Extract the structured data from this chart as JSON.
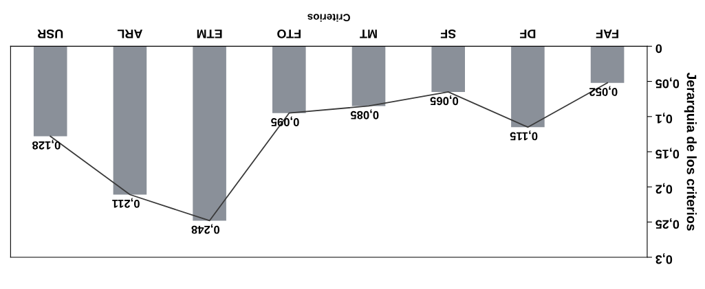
{
  "chart_data": {
    "type": "bar",
    "xlabel": "Criterios",
    "ylabel": "Jerarquia de los criterios",
    "categories": [
      "USR",
      "ARL",
      "ETM",
      "FTO",
      "MT",
      "SF",
      "DF",
      "FAF"
    ],
    "series": [
      {
        "color": "#8a9099",
        "values": [
          0.128,
          0.211,
          0.248,
          0.095,
          0.085,
          0.065,
          0.115,
          0.052
        ],
        "value_labels": [
          "0,128",
          "0,211",
          "0,248",
          "0,095",
          "0,085",
          "0,065",
          "0,115",
          "0,052"
        ]
      },
      {
        "type": "line",
        "color": "#3a3a3a",
        "marker": "none",
        "values": [
          0.128,
          0.211,
          0.248,
          0.095,
          0.085,
          0.065,
          0.115,
          0.052
        ]
      }
    ],
    "ylim": [
      0.3,
      0
    ],
    "yticks": [
      0,
      {
        "value": 0.05,
        "label": "0,05"
      },
      {
        "value": 0.1,
        "label": "0,1"
      },
      {
        "value": 0.15,
        "label": "0,15"
      },
      {
        "value": 0.2,
        "label": "0,2"
      },
      {
        "value": 0.25,
        "label": "0,25"
      },
      {
        "value": 0.3,
        "label": "0,3"
      }
    ],
    "grid": false,
    "legend": false
  }
}
